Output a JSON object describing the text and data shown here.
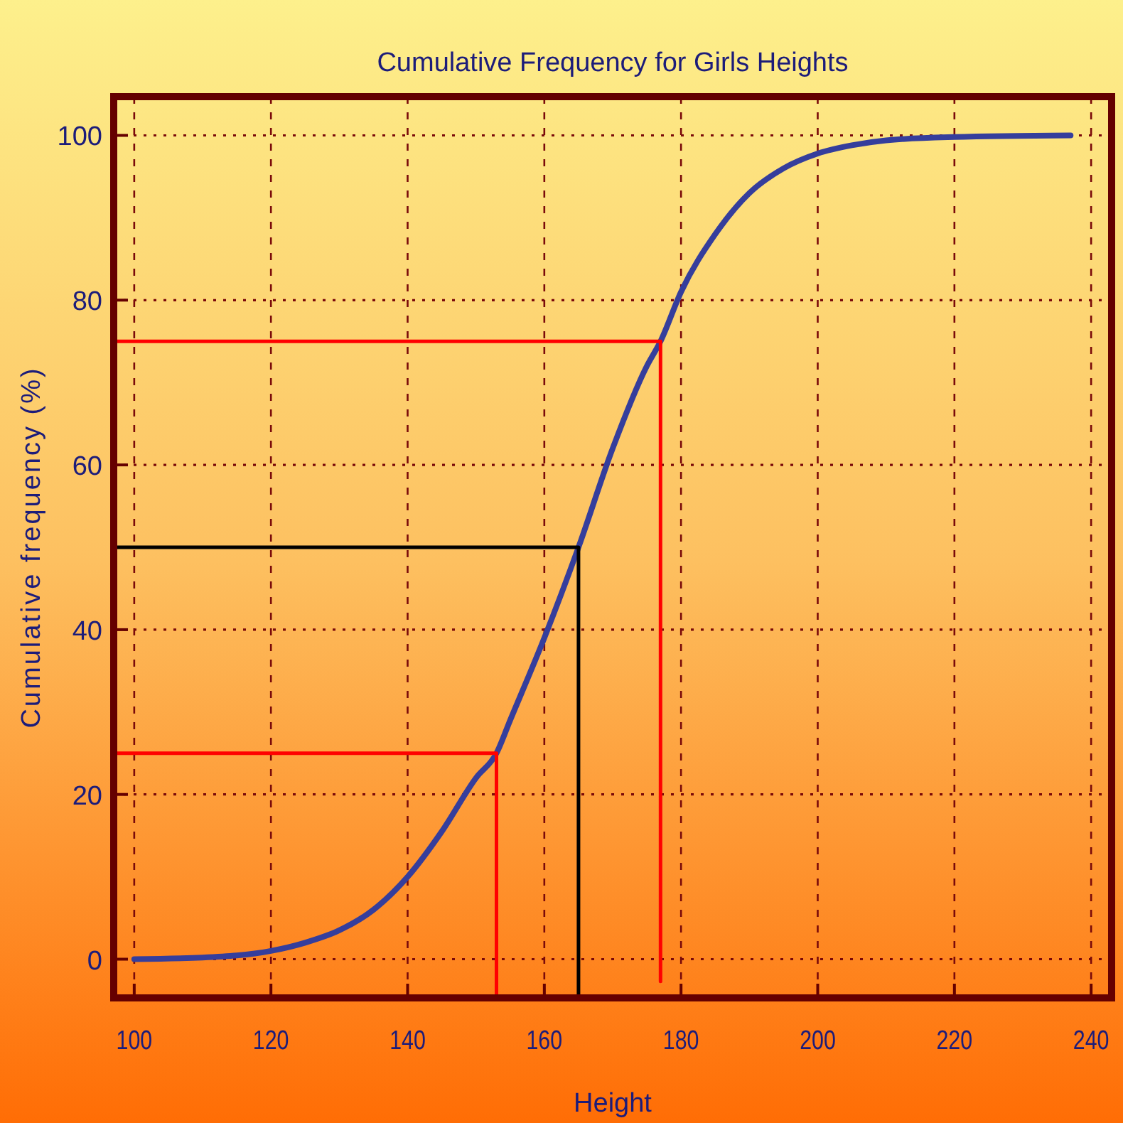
{
  "chart_data": {
    "type": "line",
    "title": "Cumulative Frequency for Girls Heights",
    "xlabel": "Height",
    "ylabel": "Cumulative frequency (%)",
    "xlim": [
      97,
      243
    ],
    "ylim": [
      -4.7,
      104.7
    ],
    "xticks": [
      100,
      120,
      140,
      160,
      180,
      200,
      220,
      240
    ],
    "yticks": [
      0,
      20,
      40,
      60,
      80,
      100
    ],
    "grid": true,
    "series": [
      {
        "color": "#353e9c",
        "x": [
          100,
          110,
          120,
          125,
          130,
          135,
          140,
          145,
          150,
          153,
          155,
          160,
          165,
          170,
          175,
          177,
          180,
          185,
          190,
          195,
          200,
          205,
          210,
          220,
          237
        ],
        "values": [
          0,
          0.2,
          1,
          2,
          3.5,
          6,
          10,
          15.5,
          22,
          25,
          29,
          39,
          50,
          62,
          72,
          75,
          81,
          88,
          93,
          96,
          97.8,
          98.8,
          99.4,
          99.8,
          100
        ]
      },
      {
        "color": "#ff0000",
        "x": [
          97,
          153,
          153
        ],
        "values": [
          25,
          25,
          -4.7
        ]
      },
      {
        "color": "#000000",
        "x": [
          97,
          165,
          165
        ],
        "values": [
          50,
          50,
          -4.7
        ]
      },
      {
        "color": "#ff0000",
        "x": [
          97,
          177,
          177
        ],
        "values": [
          75,
          75,
          -2.7
        ]
      }
    ]
  }
}
